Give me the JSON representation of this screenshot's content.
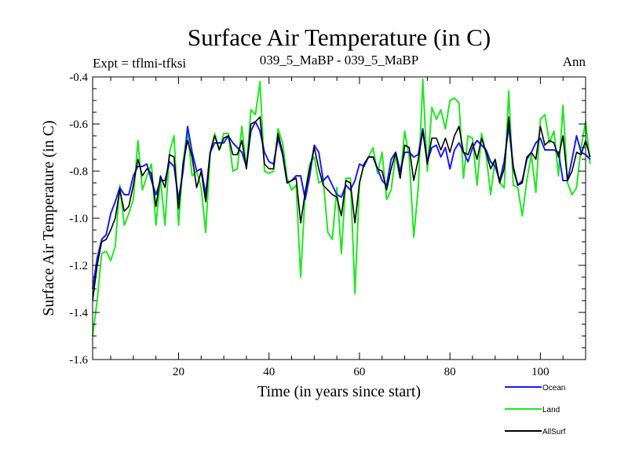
{
  "chart_data": {
    "type": "line",
    "title": "Surface Air Temperature (in C)",
    "subtitle_left": "Expt = tflmi-tfksi",
    "subtitle_center": "039_5_MaBP - 039_5_MaBP",
    "subtitle_right": "Ann",
    "xlabel": "Time (in years since start)",
    "ylabel": "Surface Air Temperature (in C)",
    "xlim": [
      1,
      110
    ],
    "ylim": [
      -1.6,
      -0.4
    ],
    "x_ticks": [
      20,
      40,
      60,
      80,
      100
    ],
    "x_tick_labels": [
      "20",
      "40",
      "60",
      "80",
      "100"
    ],
    "y_ticks": [
      -1.6,
      -1.4,
      -1.2,
      -1.0,
      -0.8,
      -0.6,
      -0.4
    ],
    "y_tick_labels": [
      "-1.6",
      "-1.4",
      "-1.2",
      "-1.0",
      "-0.8",
      "-0.6",
      "-0.4"
    ],
    "legend_position": "bottom-right, below plot",
    "series": [
      {
        "name": "Ocean",
        "color": "#1a1aff",
        "values": [
          -1.3,
          -1.17,
          -1.09,
          -1.07,
          -0.98,
          -0.93,
          -0.87,
          -0.9,
          -0.9,
          -0.82,
          -0.78,
          -0.78,
          -0.77,
          -0.84,
          -0.9,
          -0.84,
          -0.84,
          -0.76,
          -0.78,
          -0.92,
          -0.8,
          -0.61,
          -0.72,
          -0.8,
          -0.79,
          -0.9,
          -0.72,
          -0.68,
          -0.68,
          -0.68,
          -0.65,
          -0.68,
          -0.7,
          -0.72,
          -0.78,
          -0.63,
          -0.59,
          -0.63,
          -0.72,
          -0.76,
          -0.77,
          -0.66,
          -0.73,
          -0.85,
          -0.84,
          -0.82,
          -0.82,
          -0.92,
          -0.82,
          -0.69,
          -0.72,
          -0.84,
          -0.82,
          -0.86,
          -0.9,
          -0.91,
          -0.86,
          -0.88,
          -0.84,
          -0.77,
          -0.78,
          -0.74,
          -0.74,
          -0.79,
          -0.84,
          -0.86,
          -0.75,
          -0.72,
          -0.8,
          -0.72,
          -0.72,
          -0.74,
          -0.73,
          -0.62,
          -0.76,
          -0.7,
          -0.69,
          -0.74,
          -0.7,
          -0.79,
          -0.71,
          -0.68,
          -0.72,
          -0.76,
          -0.7,
          -0.67,
          -0.69,
          -0.71,
          -0.76,
          -0.78,
          -0.84,
          -0.76,
          -0.61,
          -0.78,
          -0.86,
          -0.84,
          -0.75,
          -0.72,
          -0.68,
          -0.66,
          -0.71,
          -0.71,
          -0.71,
          -0.72,
          -0.84,
          -0.84,
          -0.75,
          -0.65,
          -0.72,
          -0.73,
          -0.75
        ]
      },
      {
        "name": "Land",
        "color": "#22e622",
        "values": [
          -1.5,
          -1.35,
          -1.15,
          -1.14,
          -1.18,
          -1.12,
          -0.86,
          -1.03,
          -0.98,
          -0.92,
          -0.67,
          -0.88,
          -0.82,
          -0.77,
          -1.03,
          -0.83,
          -1.03,
          -0.72,
          -0.65,
          -1.03,
          -0.76,
          -0.63,
          -0.82,
          -0.8,
          -0.87,
          -1.06,
          -0.72,
          -0.64,
          -0.71,
          -0.64,
          -0.64,
          -0.8,
          -0.79,
          -0.61,
          -0.79,
          -0.54,
          -0.56,
          -0.42,
          -0.8,
          -0.81,
          -0.8,
          -0.62,
          -0.68,
          -0.83,
          -0.88,
          -0.86,
          -1.25,
          -0.89,
          -0.77,
          -0.74,
          -0.85,
          -0.84,
          -1.06,
          -1.09,
          -0.87,
          -1.15,
          -0.83,
          -0.83,
          -1.32,
          -0.85,
          -0.77,
          -0.74,
          -0.7,
          -0.81,
          -0.72,
          -0.92,
          -0.88,
          -0.73,
          -0.83,
          -0.63,
          -0.74,
          -1.08,
          -0.87,
          -0.41,
          -0.8,
          -0.53,
          -0.58,
          -0.54,
          -0.62,
          -0.5,
          -0.49,
          -0.51,
          -0.83,
          -0.65,
          -0.66,
          -0.86,
          -0.64,
          -0.73,
          -0.9,
          -0.75,
          -0.85,
          -0.87,
          -0.46,
          -0.86,
          -0.87,
          -0.99,
          -0.84,
          -0.73,
          -0.89,
          -0.58,
          -0.56,
          -0.68,
          -0.63,
          -0.82,
          -0.52,
          -0.85,
          -0.9,
          -0.87,
          -0.7,
          -0.59,
          -0.77
        ]
      },
      {
        "name": "AllSurf",
        "color": "#000000",
        "values": [
          -1.35,
          -1.2,
          -1.1,
          -1.09,
          -1.05,
          -1.0,
          -0.88,
          -0.97,
          -0.95,
          -0.86,
          -0.75,
          -0.82,
          -0.79,
          -0.81,
          -0.95,
          -0.82,
          -0.87,
          -0.73,
          -0.74,
          -0.96,
          -0.77,
          -0.67,
          -0.74,
          -0.87,
          -0.8,
          -0.93,
          -0.72,
          -0.65,
          -0.71,
          -0.66,
          -0.65,
          -0.73,
          -0.73,
          -0.67,
          -0.79,
          -0.6,
          -0.59,
          -0.57,
          -0.77,
          -0.79,
          -0.79,
          -0.64,
          -0.72,
          -0.85,
          -0.84,
          -0.83,
          -1.02,
          -0.89,
          -0.79,
          -0.7,
          -0.79,
          -0.86,
          -0.88,
          -0.9,
          -0.91,
          -0.99,
          -0.84,
          -0.85,
          -1.02,
          -0.85,
          -0.77,
          -0.74,
          -0.74,
          -0.79,
          -0.8,
          -0.88,
          -0.79,
          -0.72,
          -0.83,
          -0.69,
          -0.7,
          -0.84,
          -0.75,
          -0.63,
          -0.77,
          -0.66,
          -0.66,
          -0.71,
          -0.66,
          -0.72,
          -0.65,
          -0.61,
          -0.72,
          -0.73,
          -0.68,
          -0.75,
          -0.66,
          -0.72,
          -0.79,
          -0.75,
          -0.85,
          -0.79,
          -0.57,
          -0.79,
          -0.86,
          -0.85,
          -0.74,
          -0.72,
          -0.75,
          -0.61,
          -0.69,
          -0.67,
          -0.68,
          -0.74,
          -0.65,
          -0.84,
          -0.8,
          -0.72,
          -0.73,
          -0.67,
          -0.74
        ]
      }
    ]
  }
}
